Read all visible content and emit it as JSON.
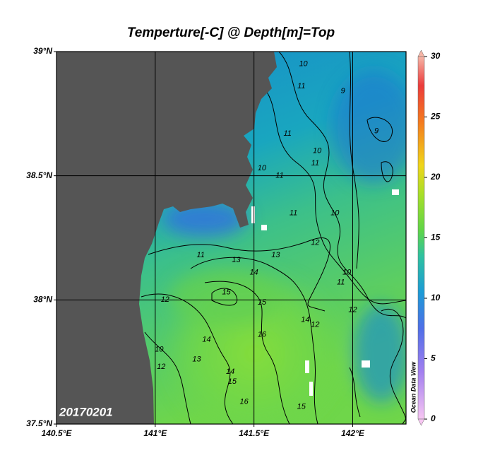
{
  "map": {
    "title": "Temperture[-C] @ Depth[m]=Top",
    "date_label": "20170201",
    "watermark": "Ocean Data View",
    "lonlim": [
      140.5,
      142.27
    ],
    "latlim": [
      37.5,
      39
    ],
    "lonticks": [
      {
        "value": 140.5,
        "label": "140.5°E"
      },
      {
        "value": 141,
        "label": "141°E"
      },
      {
        "value": 141.5,
        "label": "141.5°E"
      },
      {
        "value": 142,
        "label": "142°E"
      }
    ],
    "latticks": [
      {
        "value": 37.5,
        "label": "37.5°N"
      },
      {
        "value": 38,
        "label": "38°N"
      },
      {
        "value": 38.5,
        "label": "38.5°N"
      },
      {
        "value": 39,
        "label": "39°N"
      }
    ],
    "grid": true,
    "colorbar": {
      "lim": [
        0,
        30
      ],
      "ticks": [
        0,
        5,
        10,
        15,
        20,
        25,
        30
      ]
    },
    "contour_labels": [
      {
        "value": 10,
        "lon": 141.75,
        "lat": 38.95
      },
      {
        "value": 11,
        "lon": 141.74,
        "lat": 38.86
      },
      {
        "value": 9,
        "lon": 141.95,
        "lat": 38.84
      },
      {
        "value": 11,
        "lon": 141.67,
        "lat": 38.67
      },
      {
        "value": 9,
        "lon": 142.12,
        "lat": 38.68
      },
      {
        "value": 10,
        "lon": 141.82,
        "lat": 38.6
      },
      {
        "value": 11,
        "lon": 141.81,
        "lat": 38.55
      },
      {
        "value": 10,
        "lon": 141.54,
        "lat": 38.53
      },
      {
        "value": 11,
        "lon": 141.63,
        "lat": 38.5
      },
      {
        "value": 11,
        "lon": 141.7,
        "lat": 38.35
      },
      {
        "value": 10,
        "lon": 141.91,
        "lat": 38.35
      },
      {
        "value": 12,
        "lon": 141.81,
        "lat": 38.23
      },
      {
        "value": 11,
        "lon": 141.23,
        "lat": 38.18
      },
      {
        "value": 13,
        "lon": 141.61,
        "lat": 38.18
      },
      {
        "value": 13,
        "lon": 141.41,
        "lat": 38.16
      },
      {
        "value": 14,
        "lon": 141.5,
        "lat": 38.11
      },
      {
        "value": 10,
        "lon": 141.97,
        "lat": 38.11
      },
      {
        "value": 11,
        "lon": 141.94,
        "lat": 38.07
      },
      {
        "value": 15,
        "lon": 141.36,
        "lat": 38.03
      },
      {
        "value": 12,
        "lon": 141.05,
        "lat": 38.0
      },
      {
        "value": 15,
        "lon": 141.54,
        "lat": 37.99
      },
      {
        "value": 12,
        "lon": 142.0,
        "lat": 37.96
      },
      {
        "value": 14,
        "lon": 141.76,
        "lat": 37.92
      },
      {
        "value": 12,
        "lon": 141.81,
        "lat": 37.9
      },
      {
        "value": 16,
        "lon": 141.54,
        "lat": 37.86
      },
      {
        "value": 14,
        "lon": 141.26,
        "lat": 37.84
      },
      {
        "value": 10,
        "lon": 141.02,
        "lat": 37.8
      },
      {
        "value": 13,
        "lon": 141.21,
        "lat": 37.76
      },
      {
        "value": 12,
        "lon": 141.03,
        "lat": 37.73
      },
      {
        "value": 14,
        "lon": 141.38,
        "lat": 37.71
      },
      {
        "value": 15,
        "lon": 141.39,
        "lat": 37.67
      },
      {
        "value": 16,
        "lon": 141.45,
        "lat": 37.59
      },
      {
        "value": 15,
        "lon": 141.74,
        "lat": 37.57
      }
    ]
  }
}
